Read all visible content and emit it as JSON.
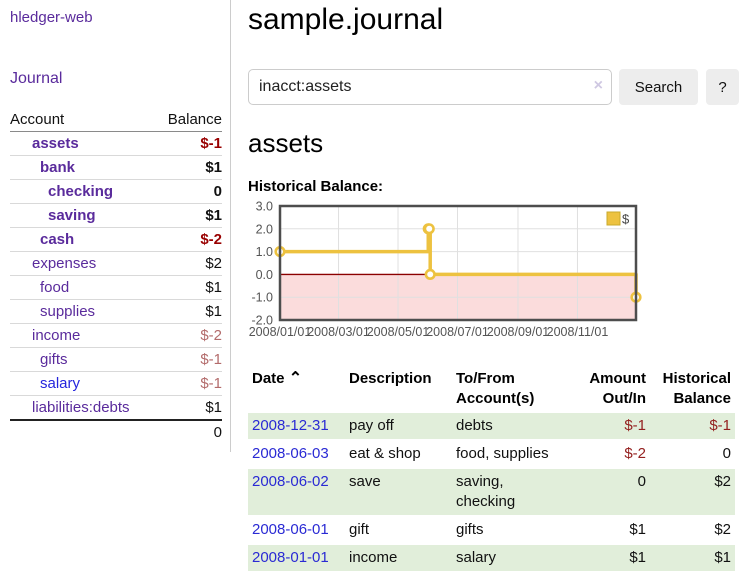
{
  "app_colors": {
    "accent_purple": "#5a2b9c",
    "link_blue": "#2525dd",
    "negative_strong": "#990000",
    "negative_muted": "#b36b6b",
    "row_green": "#e1eeda",
    "chart_line_yellow": "#edc240",
    "chart_negative_pink": "#fbdcdc",
    "chart_zero_line": "#8b0000"
  },
  "sidebar": {
    "brand": "hledger-web",
    "journal_link": "Journal",
    "accounts_table": {
      "headers": {
        "account": "Account",
        "balance": "Balance"
      },
      "rows": [
        {
          "account": "assets",
          "depth": 1,
          "bold": true,
          "balance": "$-1",
          "balance_style": "neg_strong"
        },
        {
          "account": "bank",
          "depth": 2,
          "bold": true,
          "balance": "$1",
          "balance_style": "pos"
        },
        {
          "account": "checking",
          "depth": 3,
          "bold": true,
          "balance": "0",
          "balance_style": "pos"
        },
        {
          "account": "saving",
          "depth": 3,
          "bold": true,
          "balance": "$1",
          "balance_style": "pos"
        },
        {
          "account": "cash",
          "depth": 2,
          "bold": true,
          "balance": "$-2",
          "balance_style": "neg_strong"
        },
        {
          "account": "expenses",
          "depth": 1,
          "bold": false,
          "balance": "$2",
          "balance_style": "pos"
        },
        {
          "account": "food",
          "depth": 2,
          "bold": false,
          "balance": "$1",
          "balance_style": "pos"
        },
        {
          "account": "supplies",
          "depth": 2,
          "bold": false,
          "balance": "$1",
          "balance_style": "pos"
        },
        {
          "account": "income",
          "depth": 1,
          "bold": false,
          "balance": "$-2",
          "balance_style": "neg_muted"
        },
        {
          "account": "gifts",
          "depth": 2,
          "bold": false,
          "balance": "$-1",
          "balance_style": "neg_muted"
        },
        {
          "account": "salary",
          "depth": 2,
          "bold": false,
          "link_color": "blue",
          "balance": "$-1",
          "balance_style": "neg_muted"
        },
        {
          "account": "liabilities:debts",
          "depth": 1,
          "bold": false,
          "balance": "$1",
          "balance_style": "pos"
        }
      ],
      "total": "0"
    }
  },
  "main": {
    "title": "sample.journal",
    "search": {
      "value": "inacct:assets",
      "clear_icon": "×",
      "search_button": "Search",
      "help_button": "?"
    },
    "account_heading": "assets",
    "chart_label": "Historical Balance:",
    "register": {
      "headers": {
        "date": "Date",
        "description": "Description",
        "accounts": "To/From Account(s)",
        "amount": "Amount Out/In",
        "balance": "Historical Balance"
      },
      "sort_icon": "⌃",
      "rows": [
        {
          "date": "2008-12-31",
          "description": "pay off",
          "accounts": "debts",
          "amount": "$-1",
          "balance": "$-1"
        },
        {
          "date": "2008-06-03",
          "description": "eat & shop",
          "accounts": "food, supplies",
          "amount": "$-2",
          "balance": "0"
        },
        {
          "date": "2008-06-02",
          "description": "save",
          "accounts": "saving, checking",
          "amount": "0",
          "balance": "$2"
        },
        {
          "date": "2008-06-01",
          "description": "gift",
          "accounts": "gifts",
          "amount": "$1",
          "balance": "$2"
        },
        {
          "date": "2008-01-01",
          "description": "income",
          "accounts": "salary",
          "amount": "$1",
          "balance": "$1"
        }
      ]
    }
  },
  "chart_data": {
    "type": "line",
    "title": "Historical Balance",
    "step": true,
    "series": [
      {
        "name": "$",
        "color": "#edc240",
        "points": [
          [
            "2008-01-01",
            1
          ],
          [
            "2008-06-01",
            2
          ],
          [
            "2008-06-02",
            2
          ],
          [
            "2008-06-03",
            0
          ],
          [
            "2008-12-31",
            -1
          ]
        ]
      }
    ],
    "xlim": [
      "2008-01-01",
      "2008-12-31"
    ],
    "ylim": [
      -2,
      3
    ],
    "y_ticks": [
      "3.0",
      "2.0",
      "1.0",
      "0.0",
      "-1.0",
      "-2.0"
    ],
    "x_ticks": [
      [
        "2008-01-01",
        "2008/01/01"
      ],
      [
        "2008-03-01",
        "2008/03/01"
      ],
      [
        "2008-05-01",
        "2008/05/01"
      ],
      [
        "2008-07-01",
        "2008/07/01"
      ],
      [
        "2008-09-01",
        "2008/09/01"
      ],
      [
        "2008-11-01",
        "2008/11/01"
      ]
    ],
    "grid": true,
    "legend_position": "top-right",
    "negative_region_fill": "#fbdcdc",
    "zero_line_color": "#8b0000"
  }
}
